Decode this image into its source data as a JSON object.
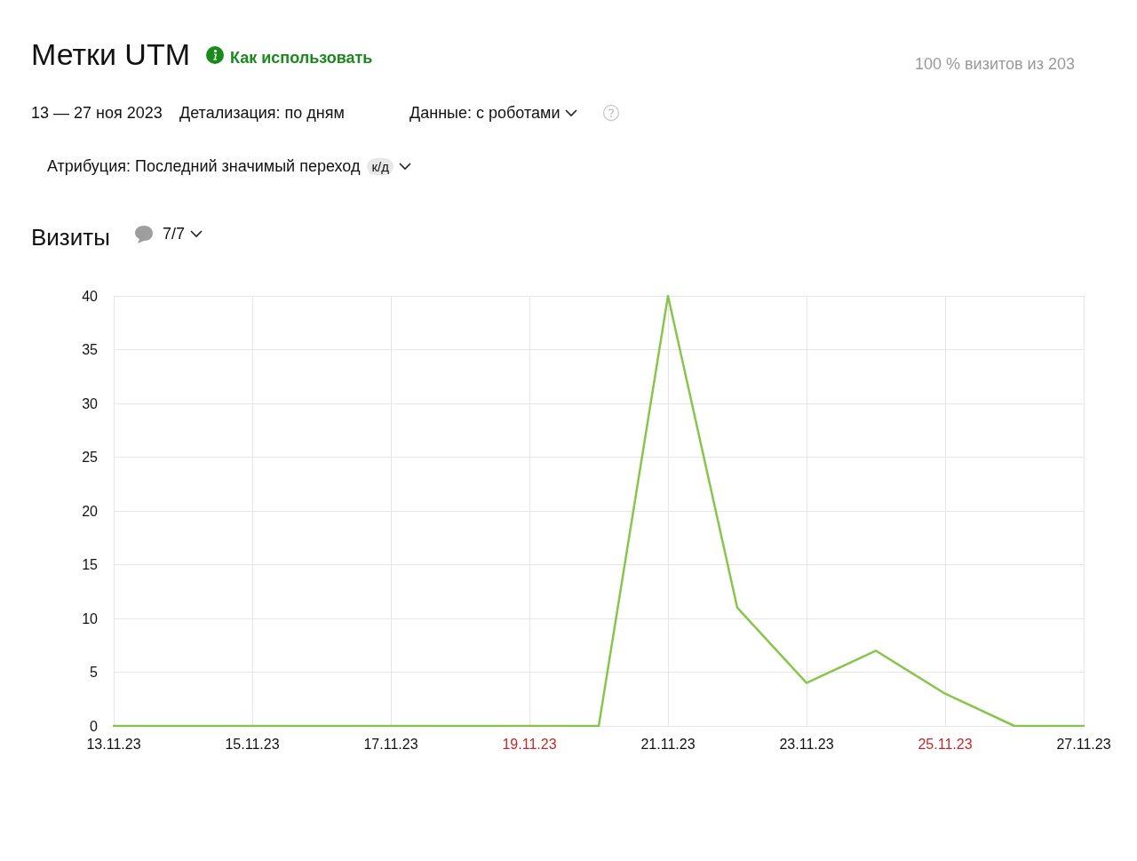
{
  "chart_data": {
    "type": "line",
    "title": "Метки UTM",
    "subtitle": "Визиты",
    "annotations": [
      "Как использовать",
      "100 % визитов из 203",
      "13 — 27 ноя 2023",
      "Детализация: по дням",
      "Данные: с роботами",
      "Атрибуция: Последний значимый переход",
      "к/д",
      "7/7"
    ],
    "x": [
      "2023-11-13",
      "2023-11-14",
      "2023-11-15",
      "2023-11-16",
      "2023-11-17",
      "2023-11-18",
      "2023-11-19",
      "2023-11-20",
      "2023-11-21",
      "2023-11-22",
      "2023-11-23",
      "2023-11-24",
      "2023-11-25",
      "2023-11-26",
      "2023-11-27"
    ],
    "series": [
      {
        "color": "#88c54b",
        "values": [
          0,
          0,
          0,
          0,
          0,
          0,
          0,
          0,
          40,
          11,
          4,
          7,
          3,
          0,
          0
        ]
      }
    ],
    "xlim": [
      "2023-11-13",
      "2023-11-27"
    ],
    "xticks": [
      {
        "value": "2023-11-13",
        "label": "13.11.23"
      },
      {
        "value": "2023-11-15",
        "label": "15.11.23"
      },
      {
        "value": "2023-11-17",
        "label": "17.11.23"
      },
      {
        "value": "2023-11-19",
        "label": "19.11.23"
      },
      {
        "value": "2023-11-21",
        "label": "21.11.23"
      },
      {
        "value": "2023-11-23",
        "label": "23.11.23"
      },
      {
        "value": "2023-11-25",
        "label": "25.11.23"
      },
      {
        "value": "2023-11-27",
        "label": "27.11.23"
      }
    ],
    "ylim": [
      0,
      40
    ],
    "yticks": [
      0,
      5,
      10,
      15,
      20,
      25,
      30,
      35,
      40
    ],
    "grid": true,
    "marker": "none",
    "line_style": "solid"
  }
}
